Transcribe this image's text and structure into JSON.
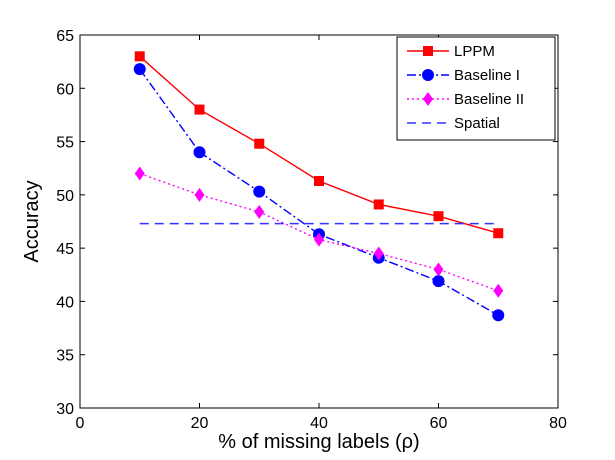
{
  "chart_data": {
    "type": "line",
    "title": "",
    "xlabel": "% of missing labels (ρ)",
    "ylabel": "Accuracy",
    "xlim": [
      0,
      80
    ],
    "ylim": [
      30,
      65
    ],
    "xticks": [
      "0",
      "20",
      "40",
      "60",
      "80"
    ],
    "yticks": [
      "30",
      "35",
      "40",
      "45",
      "50",
      "55",
      "60",
      "65"
    ],
    "grid": false,
    "legend_position": "top-right",
    "x": [
      10,
      20,
      30,
      40,
      50,
      60,
      70
    ],
    "series": [
      {
        "name": "LPPM",
        "values": [
          63.0,
          58.0,
          54.8,
          51.3,
          49.1,
          48.0,
          46.4
        ],
        "color": "#ff0000",
        "line_style": "solid",
        "marker": "square"
      },
      {
        "name": "Baseline I",
        "values": [
          61.8,
          54.0,
          50.3,
          46.3,
          44.1,
          41.9,
          38.7
        ],
        "color": "#0000ff",
        "line_style": "dashdot",
        "marker": "circle"
      },
      {
        "name": "Baseline II",
        "values": [
          52.0,
          50.0,
          48.4,
          45.8,
          44.5,
          43.0,
          41.0
        ],
        "color": "#ff00ff",
        "line_style": "dotted",
        "marker": "diamond"
      },
      {
        "name": "Spatial",
        "x": [
          10,
          70
        ],
        "values": [
          47.3,
          47.3
        ],
        "color": "#3333ff",
        "line_style": "dashed",
        "marker": "none"
      }
    ]
  }
}
